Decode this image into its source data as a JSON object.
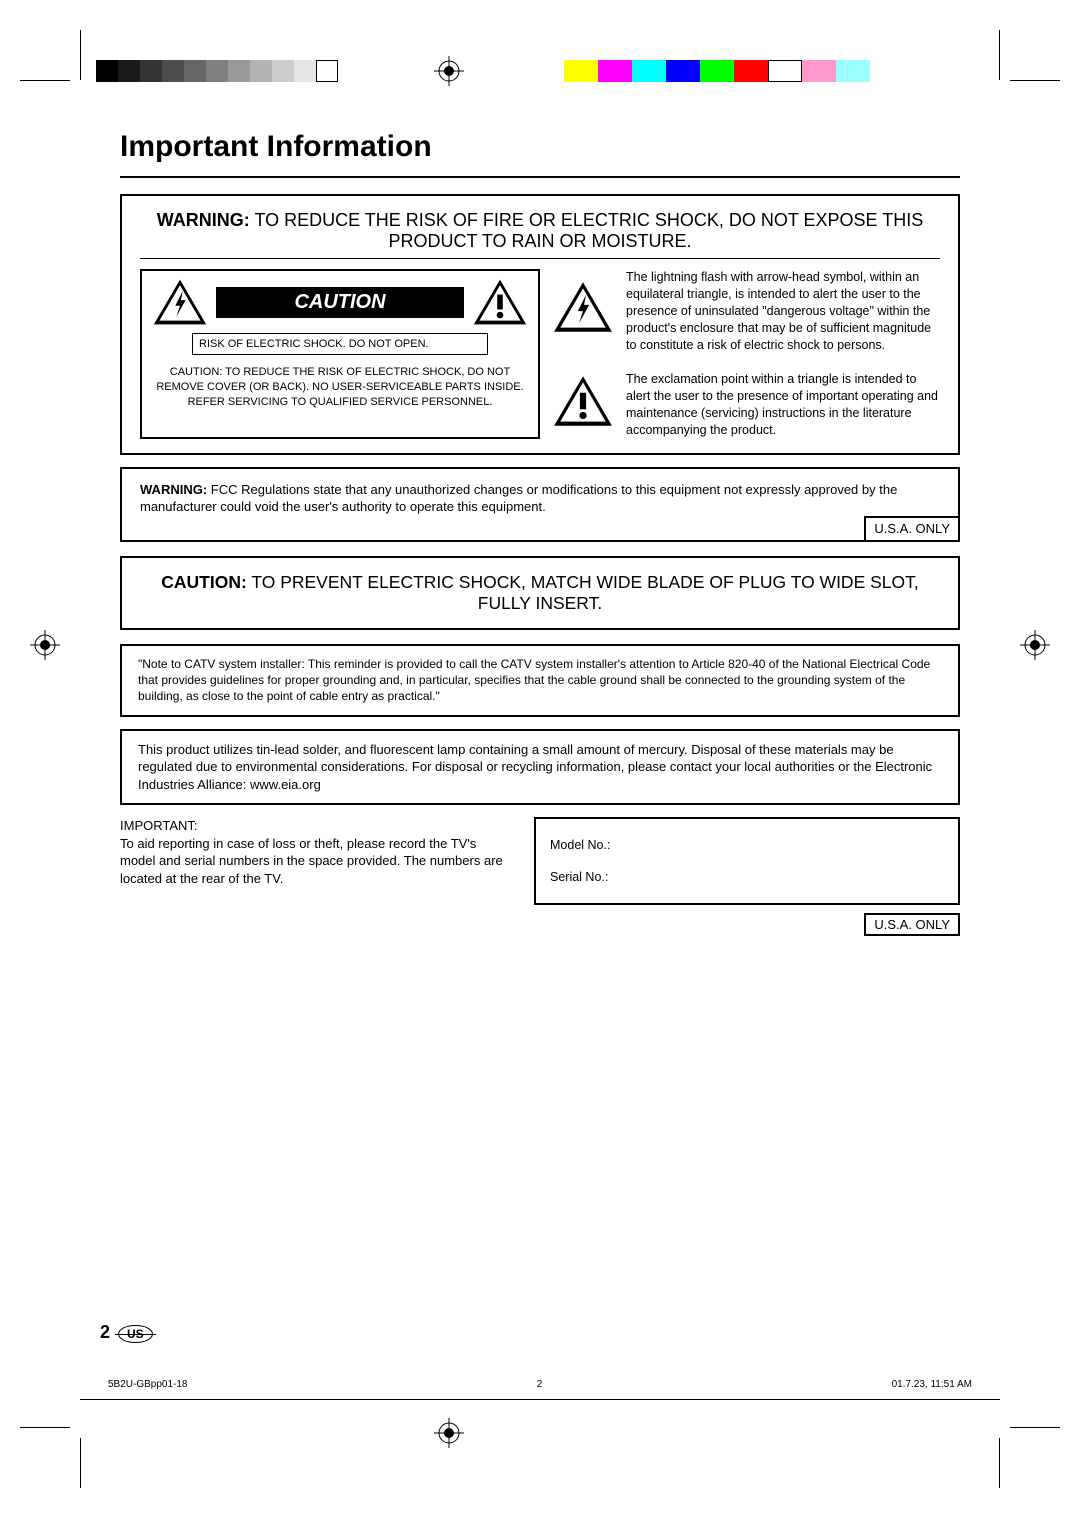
{
  "title": "Important Information",
  "warning": {
    "label": "WARNING:",
    "text": "TO REDUCE THE RISK OF FIRE OR ELECTRIC SHOCK, DO NOT EXPOSE THIS PRODUCT TO RAIN OR MOISTURE."
  },
  "caution_box": {
    "banner": "CAUTION",
    "risk": "RISK OF ELECTRIC SHOCK. DO NOT OPEN.",
    "body": "CAUTION: TO REDUCE THE RISK OF ELECTRIC SHOCK, DO NOT REMOVE COVER (OR BACK). NO USER-SERVICEABLE PARTS INSIDE. REFER SERVICING TO QUALIFIED SERVICE PERSONNEL."
  },
  "desc": {
    "lightning": "The lightning flash with arrow-head symbol, within an equilateral triangle, is intended to alert the user to the presence of uninsulated \"dangerous voltage\" within the product's enclosure that may be of sufficient magnitude to constitute a risk of electric shock to persons.",
    "exclaim": "The exclamation point within a triangle is intended to alert the user to the presence of important operating and maintenance (servicing) instructions in the literature accompanying the product."
  },
  "fcc": {
    "label": "WARNING:",
    "text": "FCC Regulations state that any unauthorized changes or modifications to this equipment not expressly approved by the manufacturer could void the user's authority to operate this equipment.",
    "usa": "U.S.A. ONLY"
  },
  "caution_plug": {
    "label": "CAUTION:",
    "text": "TO PREVENT ELECTRIC SHOCK, MATCH WIDE BLADE OF PLUG TO WIDE SLOT, FULLY INSERT."
  },
  "catv": "\"Note to CATV system installer: This reminder is provided to call the CATV system installer's attention to Article 820-40 of the National Electrical Code that provides guidelines for proper grounding and, in particular, specifies that the cable ground shall be connected to the grounding system of the building, as close to the point of cable entry as practical.\"",
  "solder": "This product utilizes tin-lead solder, and fluorescent lamp containing a small amount of mercury. Disposal of these materials may be regulated due to environmental considerations. For disposal or recycling information, please contact your local authorities or the Electronic Industries Alliance: www.eia.org",
  "important": {
    "label": "IMPORTANT:",
    "text": "To aid reporting in case of loss or theft, please record the TV's model and serial numbers in the space provided. The numbers are located at the rear of the TV."
  },
  "serial": {
    "model": "Model No.:",
    "serial": "Serial No.:",
    "usa": "U.S.A. ONLY"
  },
  "footer": {
    "page": "2",
    "us": "US",
    "doc": "5B2U-GBpp01-18",
    "pgnum": "2",
    "date": "01.7.23, 11:51 AM"
  },
  "colorbars": {
    "gray": [
      "#000000",
      "#1a1a1a",
      "#333333",
      "#4d4d4d",
      "#666666",
      "#808080",
      "#999999",
      "#b3b3b3",
      "#cccccc",
      "#e6e6e6",
      "#ffffff"
    ],
    "color": [
      "#ffff00",
      "#ff00ff",
      "#00ffff",
      "#0000ff",
      "#00ff00",
      "#ff0000",
      "#ffffff",
      "#ff99cc",
      "#99ffff"
    ]
  }
}
